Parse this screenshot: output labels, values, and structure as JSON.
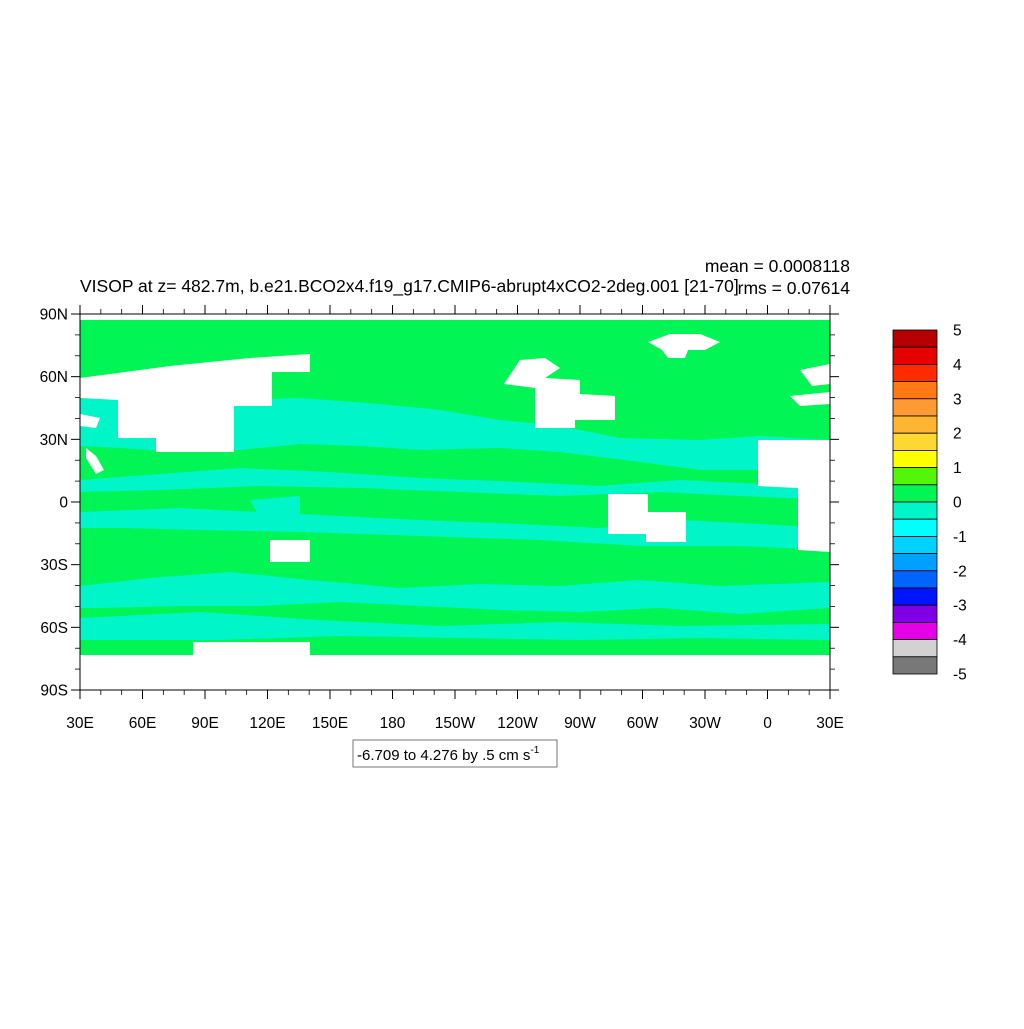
{
  "chart_data": {
    "type": "heatmap",
    "title": "VISOP at z= 482.7m, b.e21.BCO2x4.f19_g17.CMIP6-abrupt4xCO2-2deg.001 [21-70]",
    "stats": {
      "mean": "mean = 0.0008118",
      "rms": "rms = 0.07614"
    },
    "x_ticks": [
      "30E",
      "60E",
      "90E",
      "120E",
      "150E",
      "180",
      "150W",
      "120W",
      "90W",
      "60W",
      "30W",
      "0",
      "30E"
    ],
    "y_ticks": [
      "90N",
      "60N",
      "30N",
      "0",
      "30S",
      "60S",
      "90S"
    ],
    "xlim": [
      30,
      390
    ],
    "ylim": [
      -90,
      90
    ],
    "grid": false,
    "colorbar": {
      "levels": [
        "5",
        "4",
        "3",
        "2",
        "1",
        "0",
        "-1",
        "-2",
        "-3",
        "-4",
        "-5"
      ],
      "colors": [
        "#b40000",
        "#e60000",
        "#ff2a00",
        "#ff7a14",
        "#ff9a32",
        "#ffb432",
        "#ffd732",
        "#ffff00",
        "#55f50a",
        "#00f555",
        "#00f5c8",
        "#00ffff",
        "#00d2ff",
        "#00a0ff",
        "#0064ff",
        "#0014ff",
        "#8000e6",
        "#e600e6",
        "#d2d2d2",
        "#787878"
      ]
    },
    "range_label": "-6.709 to 4.276 by .5 cm s",
    "range_unit_sup": "-1",
    "field_colors": {
      "positive": "#00f555",
      "negative": "#00f5c8",
      "land": "#ffffff"
    }
  }
}
